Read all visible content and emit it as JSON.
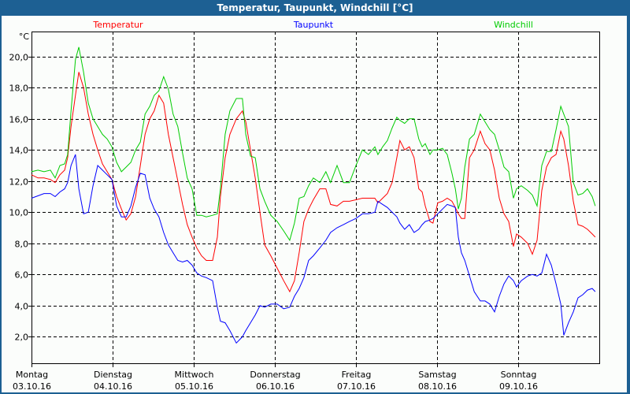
{
  "window": {
    "title": "Temperatur, Taupunkt, Windchill [°C]"
  },
  "chart_data": {
    "type": "line",
    "title": "Temperatur, Taupunkt, Windchill [°C]",
    "ylabel": "°C",
    "xlabel": "",
    "ylim": [
      0.3,
      21.6
    ],
    "xlim_hours": [
      0,
      168
    ],
    "grid": true,
    "yticks": [
      2,
      4,
      6,
      8,
      10,
      12,
      14,
      16,
      18,
      20
    ],
    "ytick_labels": [
      "2,0",
      "4,0",
      "6,0",
      "8,0",
      "10,0",
      "12,0",
      "14,0",
      "16,0",
      "18,0",
      "20,0"
    ],
    "xticks": [
      {
        "hour": 0,
        "day": "Montag",
        "date": "03.10.16"
      },
      {
        "hour": 24,
        "day": "Dienstag",
        "date": "04.10.16"
      },
      {
        "hour": 48,
        "day": "Mittwoch",
        "date": "05.10.16"
      },
      {
        "hour": 72,
        "day": "Donnerstag",
        "date": "06.10.16"
      },
      {
        "hour": 96,
        "day": "Freitag",
        "date": "07.10.16"
      },
      {
        "hour": 120,
        "day": "Samstag",
        "date": "08.10.16"
      },
      {
        "hour": 144,
        "day": "Sonntag",
        "date": "09.10.16"
      }
    ],
    "x_hours": [
      0,
      1.9,
      3.7,
      5.6,
      7.0,
      8.4,
      9.8,
      10.7,
      11.7,
      13.0,
      14.0,
      15.4,
      16.8,
      18.2,
      19.6,
      21.0,
      22.4,
      23.8,
      25.2,
      26.6,
      28.0,
      29.4,
      30.8,
      32.2,
      33.6,
      35.0,
      36.3,
      37.7,
      39.1,
      40.5,
      41.9,
      43.3,
      44.7,
      46.1,
      47.5,
      48.9,
      50.3,
      51.7,
      53.6,
      55.0,
      55.9,
      57.3,
      58.7,
      60.6,
      62.4,
      63.4,
      64.8,
      66.2,
      67.6,
      69.0,
      70.8,
      72.7,
      74.6,
      76.4,
      77.8,
      79.2,
      80.6,
      82.0,
      83.4,
      85.3,
      87.1,
      88.5,
      90.4,
      92.3,
      94.1,
      96.0,
      97.9,
      99.7,
      101.6,
      102.5,
      103.9,
      105.3,
      106.7,
      108.1,
      109.0,
      110.4,
      111.8,
      113.2,
      114.6,
      115.6,
      116.5,
      117.9,
      118.8,
      120.2,
      121.6,
      123.0,
      124.4,
      125.4,
      126.3,
      127.2,
      128.2,
      129.6,
      131.0,
      132.8,
      134.2,
      135.6,
      137.0,
      138.4,
      139.8,
      141.2,
      142.6,
      143.5,
      144.9,
      146.8,
      148.2,
      149.6,
      151.0,
      152.4,
      153.8,
      155.2,
      156.6,
      157.5,
      158.9,
      160.3,
      161.7,
      163.1,
      164.5,
      165.9,
      166.8
    ],
    "series": [
      {
        "name": "Temperatur",
        "color": "#ff0000",
        "values": [
          12.4,
          12.2,
          12.2,
          12.1,
          11.9,
          12.4,
          12.7,
          13.5,
          15.5,
          17.5,
          19.0,
          18.0,
          16.3,
          15.0,
          14.0,
          13.1,
          12.6,
          12.1,
          11.0,
          10.2,
          9.5,
          9.9,
          11.0,
          13.0,
          15.0,
          16.0,
          16.5,
          17.5,
          17.0,
          15.0,
          13.5,
          12.0,
          10.5,
          9.2,
          8.4,
          7.7,
          7.2,
          6.9,
          6.9,
          8.4,
          11.0,
          13.5,
          15.0,
          16.0,
          16.5,
          15.8,
          14.0,
          12.2,
          10.0,
          7.9,
          7.2,
          6.4,
          5.6,
          4.9,
          5.6,
          7.4,
          9.4,
          10.2,
          10.8,
          11.5,
          11.5,
          10.5,
          10.4,
          10.7,
          10.7,
          10.8,
          10.9,
          10.9,
          10.9,
          10.6,
          10.9,
          11.2,
          11.9,
          13.5,
          14.6,
          14.0,
          14.2,
          13.5,
          11.5,
          11.3,
          10.4,
          9.4,
          9.3,
          10.6,
          10.7,
          10.9,
          10.7,
          10.3,
          9.9,
          9.6,
          9.6,
          13.5,
          14.0,
          15.2,
          14.4,
          14.0,
          12.7,
          10.9,
          9.9,
          9.4,
          7.8,
          8.6,
          8.4,
          8.0,
          7.3,
          8.2,
          11.4,
          12.9,
          13.5,
          13.7,
          15.2,
          14.7,
          13.0,
          10.7,
          9.2,
          9.1,
          8.9,
          8.6,
          8.4
        ]
      },
      {
        "name": "Taupunkt",
        "color": "#0000ff",
        "values": [
          10.9,
          11.05,
          11.2,
          11.2,
          11.0,
          11.3,
          11.5,
          11.9,
          13.0,
          13.7,
          11.5,
          9.9,
          10.0,
          11.7,
          13.0,
          12.7,
          12.4,
          12.1,
          10.4,
          9.7,
          9.7,
          10.4,
          11.6,
          12.5,
          12.4,
          10.9,
          10.2,
          9.7,
          8.7,
          7.9,
          7.4,
          6.9,
          6.8,
          6.9,
          6.6,
          6.1,
          5.9,
          5.8,
          5.6,
          3.9,
          3.0,
          2.9,
          2.4,
          1.6,
          2.0,
          2.4,
          2.9,
          3.4,
          4.0,
          3.9,
          4.1,
          4.1,
          3.8,
          3.9,
          4.6,
          5.1,
          5.8,
          6.9,
          7.2,
          7.7,
          8.2,
          8.7,
          9.0,
          9.2,
          9.4,
          9.6,
          9.9,
          9.9,
          10.0,
          10.7,
          10.5,
          10.3,
          10.0,
          9.7,
          9.3,
          8.9,
          9.2,
          8.7,
          8.9,
          9.2,
          9.4,
          9.5,
          9.6,
          9.9,
          10.2,
          10.5,
          10.4,
          10.3,
          8.4,
          7.4,
          6.9,
          5.9,
          4.9,
          4.3,
          4.3,
          4.1,
          3.6,
          4.6,
          5.4,
          5.9,
          5.6,
          5.2,
          5.6,
          5.9,
          6.0,
          5.9,
          6.1,
          7.3,
          6.6,
          5.4,
          4.1,
          2.1,
          2.9,
          3.6,
          4.5,
          4.7,
          5.0,
          5.1,
          4.9
        ]
      },
      {
        "name": "Windchill",
        "color": "#00cc00",
        "values": [
          12.6,
          12.7,
          12.6,
          12.7,
          12.2,
          13.0,
          13.1,
          13.7,
          16.5,
          19.8,
          20.6,
          19.0,
          17.0,
          16.0,
          15.5,
          15.0,
          14.7,
          14.2,
          13.2,
          12.6,
          12.9,
          13.2,
          14.0,
          14.5,
          16.3,
          16.8,
          17.5,
          17.8,
          18.7,
          17.9,
          16.3,
          15.5,
          13.8,
          12.2,
          11.5,
          9.8,
          9.8,
          9.7,
          9.8,
          9.9,
          11.5,
          15.0,
          16.5,
          17.3,
          17.3,
          15.0,
          13.6,
          13.5,
          11.5,
          10.7,
          9.8,
          9.4,
          8.8,
          8.2,
          9.3,
          10.9,
          11.0,
          11.7,
          12.2,
          11.9,
          12.6,
          11.9,
          13.0,
          11.9,
          11.9,
          13.0,
          14.0,
          13.7,
          14.2,
          13.7,
          14.2,
          14.6,
          15.4,
          16.1,
          15.9,
          15.7,
          16.0,
          16.0,
          14.7,
          14.2,
          14.4,
          13.7,
          14.0,
          14.0,
          14.1,
          13.7,
          12.5,
          11.5,
          10.2,
          10.9,
          12.9,
          14.7,
          15.0,
          16.3,
          15.8,
          15.3,
          15.0,
          14.0,
          12.9,
          12.6,
          10.9,
          11.5,
          11.7,
          11.4,
          11.1,
          10.4,
          13.0,
          13.9,
          13.9,
          15.3,
          16.8,
          16.3,
          15.5,
          11.9,
          11.1,
          11.2,
          11.5,
          11.0,
          10.4
        ]
      }
    ]
  }
}
